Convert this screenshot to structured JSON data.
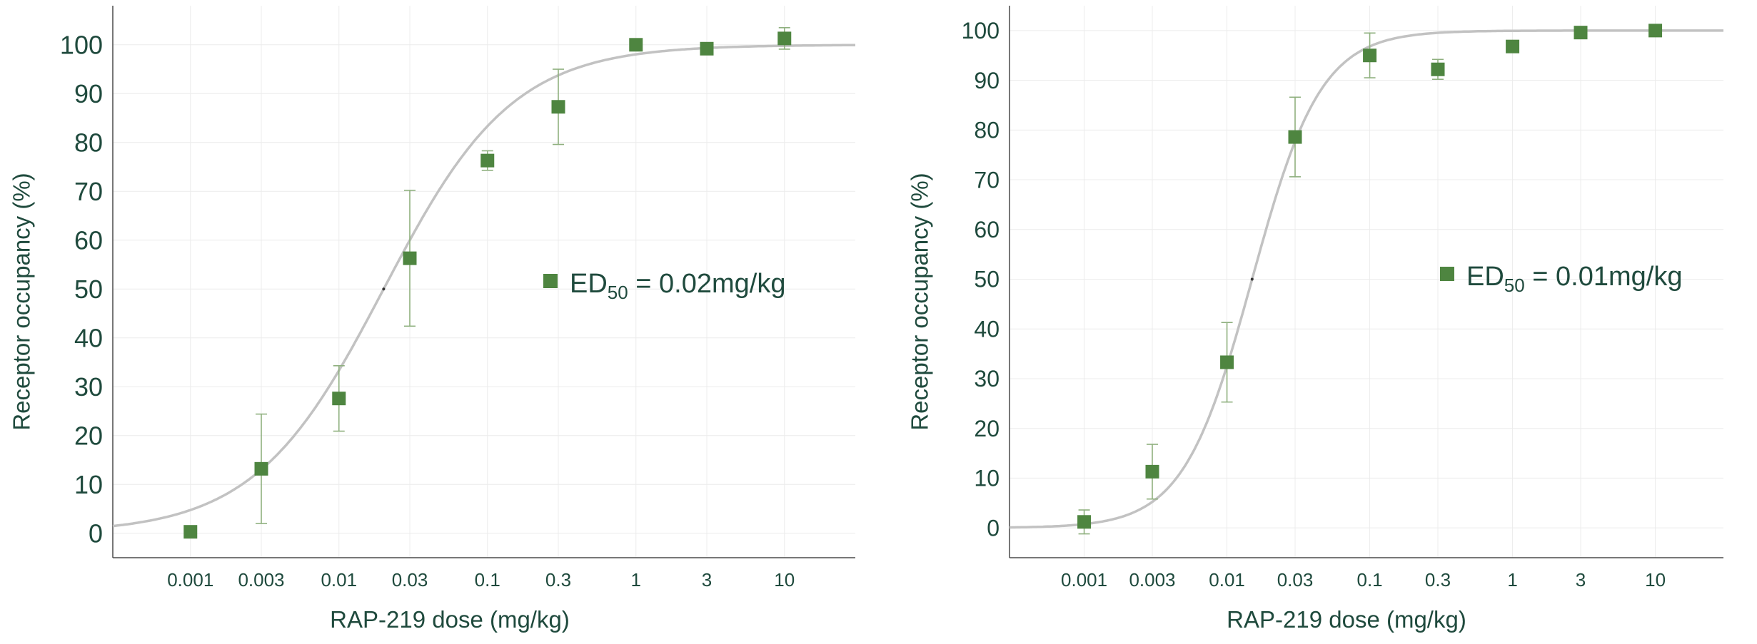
{
  "chart_data": [
    {
      "type": "scatter",
      "title": "",
      "xlabel": "RAP-219 dose (mg/kg)",
      "ylabel": "Receptor occupancy (%)",
      "x_scale": "log",
      "xticks": [
        "0.001",
        "0.003",
        "0.01",
        "0.03",
        "0.1",
        "0.3",
        "1",
        "3",
        "10"
      ],
      "yticks": [
        "0",
        "10",
        "20",
        "30",
        "40",
        "50",
        "60",
        "70",
        "80",
        "90",
        "100"
      ],
      "xlim": [
        0.0003,
        30
      ],
      "ylim": [
        -5,
        108
      ],
      "grid": true,
      "legend_position": "center-right",
      "colors": {
        "marker": "#4e8540",
        "errorbar": "#8fb07f",
        "fit": "#c2c2c2",
        "text": "#1f4a3d",
        "axis": "#4a4a4a",
        "grid": "#ececec"
      },
      "legend": {
        "prefix": "ED",
        "subscript": "50",
        "value": " = 0.02mg/kg"
      },
      "fit": {
        "model": "hill",
        "ed50": 0.02,
        "hill_slope": 1.0,
        "bottom": 0,
        "top": 100
      },
      "series": [
        {
          "x": [
            0.001,
            0.003,
            0.01,
            0.03,
            0.1,
            0.3,
            1,
            3,
            10
          ],
          "y": [
            0.3,
            13.2,
            27.6,
            56.3,
            76.3,
            87.3,
            100,
            99.2,
            101.3
          ],
          "error": [
            0,
            11.2,
            6.7,
            13.9,
            2.0,
            7.7,
            0,
            0.7,
            2.2
          ]
        }
      ]
    },
    {
      "type": "scatter",
      "title": "",
      "xlabel": "RAP-219 dose (mg/kg)",
      "ylabel": "Receptor occupancy (%)",
      "x_scale": "log",
      "xticks": [
        "0.001",
        "0.003",
        "0.01",
        "0.03",
        "0.1",
        "0.3",
        "1",
        "3",
        "10"
      ],
      "yticks": [
        "0",
        "10",
        "20",
        "30",
        "40",
        "50",
        "60",
        "70",
        "80",
        "90",
        "100"
      ],
      "xlim": [
        0.0003,
        30
      ],
      "ylim": [
        -6,
        105
      ],
      "grid": true,
      "legend_position": "center-right",
      "colors": {
        "marker": "#4e8540",
        "errorbar": "#8fb07f",
        "fit": "#c2c2c2",
        "text": "#1f4a3d",
        "axis": "#4a4a4a",
        "grid": "#ececec"
      },
      "legend": {
        "prefix": "ED",
        "subscript": "50",
        "value": " = 0.01mg/kg"
      },
      "fit": {
        "model": "hill",
        "ed50": 0.015,
        "hill_slope": 1.8,
        "bottom": 0,
        "top": 100
      },
      "series": [
        {
          "x": [
            0.001,
            0.003,
            0.01,
            0.03,
            0.1,
            0.3,
            1,
            3,
            10
          ],
          "y": [
            1.2,
            11.3,
            33.3,
            78.6,
            95.0,
            92.2,
            96.8,
            99.6,
            100
          ],
          "error": [
            2.4,
            5.5,
            8.0,
            8.0,
            4.5,
            2.0,
            1.0,
            0.5,
            0
          ]
        }
      ]
    }
  ]
}
